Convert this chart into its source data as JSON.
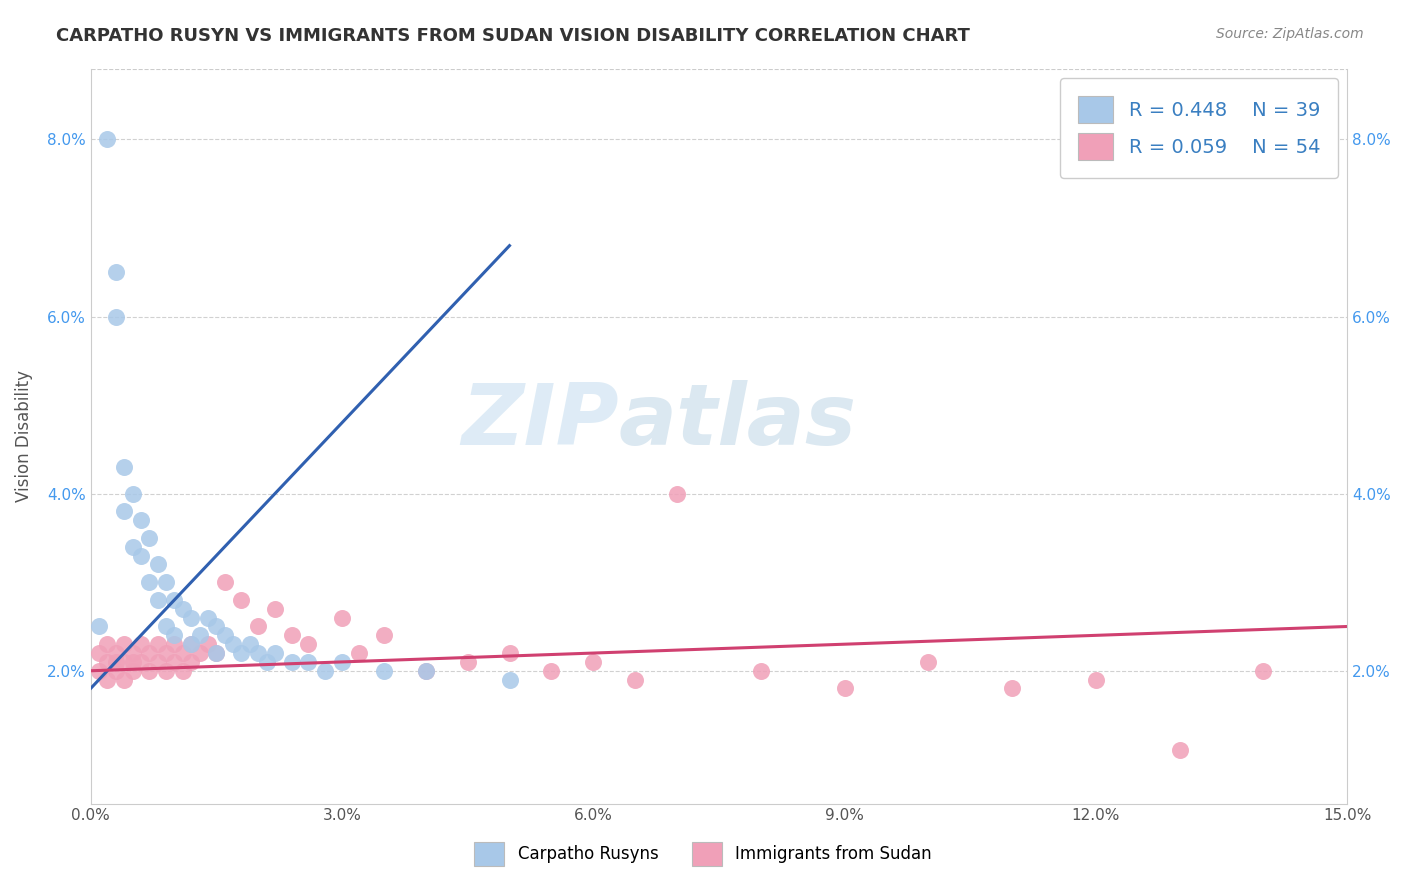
{
  "title": "CARPATHO RUSYN VS IMMIGRANTS FROM SUDAN VISION DISABILITY CORRELATION CHART",
  "source": "Source: ZipAtlas.com",
  "xlabel": "",
  "ylabel": "Vision Disability",
  "xlim": [
    0,
    0.15
  ],
  "ylim": [
    0.005,
    0.088
  ],
  "xticks": [
    0.0,
    0.03,
    0.06,
    0.09,
    0.12,
    0.15
  ],
  "yticks": [
    0.02,
    0.04,
    0.06,
    0.08
  ],
  "blue_R": 0.448,
  "blue_N": 39,
  "pink_R": 0.059,
  "pink_N": 54,
  "blue_color": "#A8C8E8",
  "pink_color": "#F0A0B8",
  "blue_line_color": "#3060B0",
  "pink_line_color": "#D04070",
  "legend_label_blue": "Carpatho Rusyns",
  "legend_label_pink": "Immigrants from Sudan",
  "watermark_zip": "ZIP",
  "watermark_atlas": "atlas",
  "background_color": "#ffffff",
  "blue_scatter_x": [
    0.001,
    0.002,
    0.003,
    0.003,
    0.004,
    0.004,
    0.005,
    0.005,
    0.006,
    0.006,
    0.007,
    0.007,
    0.008,
    0.008,
    0.009,
    0.009,
    0.01,
    0.01,
    0.011,
    0.012,
    0.012,
    0.013,
    0.014,
    0.015,
    0.015,
    0.016,
    0.017,
    0.018,
    0.019,
    0.02,
    0.021,
    0.022,
    0.024,
    0.026,
    0.028,
    0.03,
    0.035,
    0.04,
    0.05
  ],
  "blue_scatter_y": [
    0.025,
    0.08,
    0.065,
    0.06,
    0.043,
    0.038,
    0.04,
    0.034,
    0.037,
    0.033,
    0.035,
    0.03,
    0.032,
    0.028,
    0.03,
    0.025,
    0.028,
    0.024,
    0.027,
    0.026,
    0.023,
    0.024,
    0.026,
    0.025,
    0.022,
    0.024,
    0.023,
    0.022,
    0.023,
    0.022,
    0.021,
    0.022,
    0.021,
    0.021,
    0.02,
    0.021,
    0.02,
    0.02,
    0.019
  ],
  "pink_scatter_x": [
    0.001,
    0.001,
    0.002,
    0.002,
    0.002,
    0.003,
    0.003,
    0.003,
    0.004,
    0.004,
    0.004,
    0.005,
    0.005,
    0.005,
    0.006,
    0.006,
    0.007,
    0.007,
    0.008,
    0.008,
    0.009,
    0.009,
    0.01,
    0.01,
    0.011,
    0.011,
    0.012,
    0.012,
    0.013,
    0.014,
    0.015,
    0.016,
    0.018,
    0.02,
    0.022,
    0.024,
    0.026,
    0.03,
    0.032,
    0.035,
    0.04,
    0.045,
    0.05,
    0.055,
    0.06,
    0.065,
    0.07,
    0.08,
    0.09,
    0.1,
    0.11,
    0.12,
    0.13,
    0.14
  ],
  "pink_scatter_y": [
    0.022,
    0.02,
    0.023,
    0.021,
    0.019,
    0.022,
    0.021,
    0.02,
    0.023,
    0.021,
    0.019,
    0.022,
    0.021,
    0.02,
    0.023,
    0.021,
    0.022,
    0.02,
    0.023,
    0.021,
    0.022,
    0.02,
    0.023,
    0.021,
    0.022,
    0.02,
    0.023,
    0.021,
    0.022,
    0.023,
    0.022,
    0.03,
    0.028,
    0.025,
    0.027,
    0.024,
    0.023,
    0.026,
    0.022,
    0.024,
    0.02,
    0.021,
    0.022,
    0.02,
    0.021,
    0.019,
    0.04,
    0.02,
    0.018,
    0.021,
    0.018,
    0.019,
    0.011,
    0.02
  ],
  "blue_line_x": [
    0.0,
    0.05
  ],
  "blue_line_y": [
    0.018,
    0.068
  ],
  "pink_line_x": [
    0.0,
    0.15
  ],
  "pink_line_y": [
    0.02,
    0.025
  ]
}
